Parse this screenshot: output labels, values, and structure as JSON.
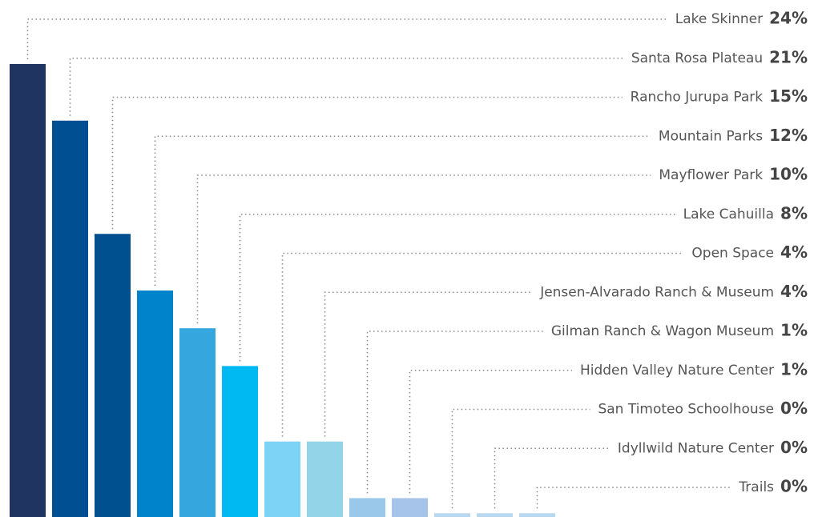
{
  "chart_data": {
    "type": "bar",
    "categories": [
      "Lake Skinner",
      "Santa Rosa Plateau",
      "Rancho Jurupa Park",
      "Mountain Parks",
      "Mayflower Park",
      "Lake Cahuilla",
      "Open Space",
      "Jensen-Alvarado Ranch & Museum",
      "Gilman Ranch & Wagon Museum",
      "Hidden Valley Nature Center",
      "San Timoteo Schoolhouse",
      "Idyllwild Nature Center",
      "Trails"
    ],
    "values": [
      24,
      21,
      15,
      12,
      10,
      8,
      4,
      4,
      1,
      1,
      0.2,
      0.2,
      0.2
    ],
    "value_labels": [
      "24%",
      "21%",
      "15%",
      "12%",
      "10%",
      "8%",
      "4%",
      "4%",
      "1%",
      "1%",
      "0%",
      "0%",
      "0%"
    ],
    "colors": [
      "#1f3461",
      "#004f93",
      "#00508f",
      "#0083ca",
      "#36a6df",
      "#00b9f2",
      "#7dd3f5",
      "#94d4e8",
      "#9ac8ea",
      "#a6c4ea",
      "#b8d8f2",
      "#b8d8f2",
      "#b8d8f2"
    ]
  }
}
